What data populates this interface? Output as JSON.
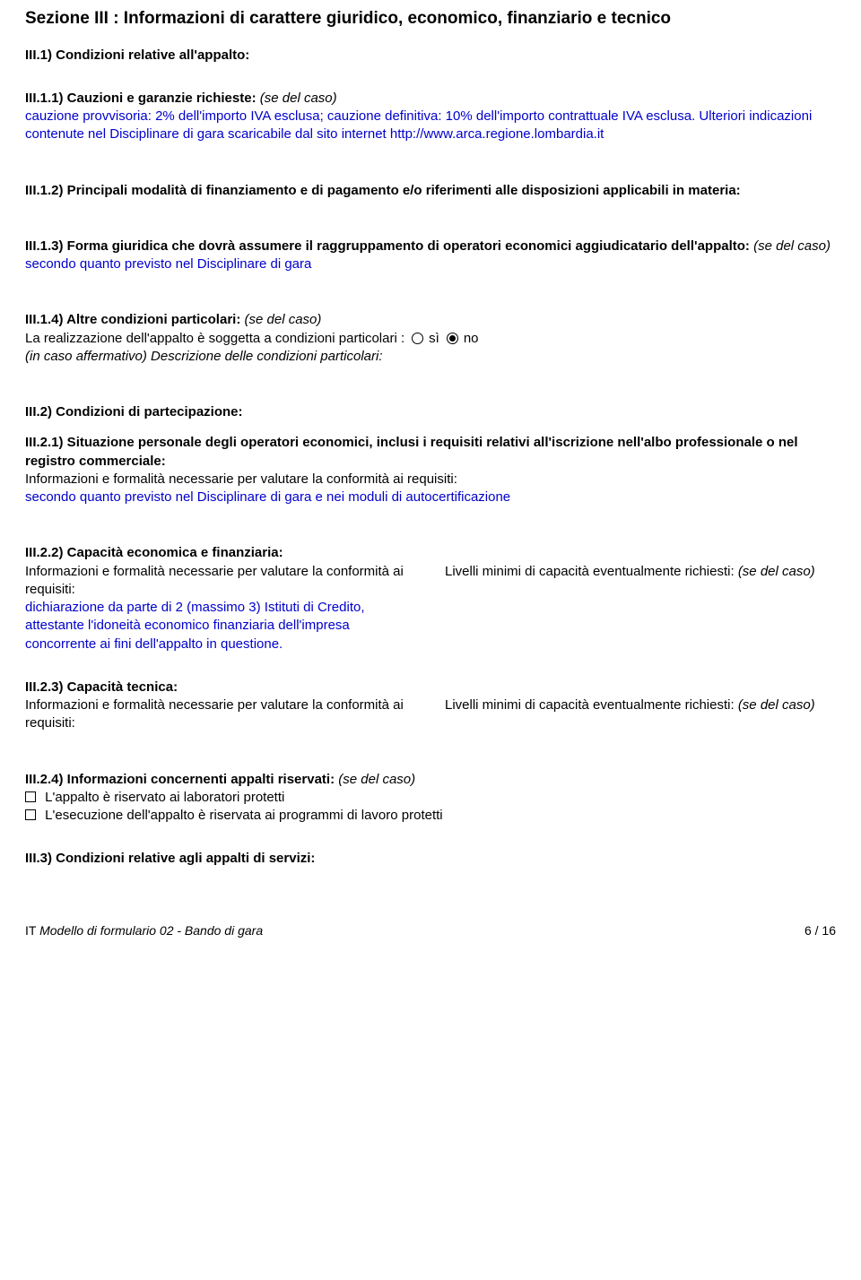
{
  "section_title": "Sezione III : Informazioni di carattere giuridico, economico, finanziario e tecnico",
  "iii_1_heading": "III.1) Condizioni relative all'appalto:",
  "iii_1_1": {
    "label": "III.1.1) Cauzioni e garanzie richieste:",
    "note": "(se del caso)",
    "body": "cauzione provvisoria: 2% dell'importo IVA esclusa; cauzione definitiva: 10% dell'importo contrattuale IVA esclusa. Ulteriori indicazioni contenute nel Disciplinare di gara scaricabile dal sito internet http://www.arca.regione.lombardia.it"
  },
  "iii_1_2": {
    "label": "III.1.2) Principali modalità di finanziamento e di pagamento e/o riferimenti alle disposizioni applicabili in materia:"
  },
  "iii_1_3": {
    "label": "III.1.3) Forma giuridica che dovrà assumere il raggruppamento di operatori economici aggiudicatario dell'appalto:",
    "note": "(se del caso)",
    "body": "secondo quanto previsto nel Disciplinare di gara"
  },
  "iii_1_4": {
    "label": "III.1.4) Altre condizioni particolari:",
    "note": "(se del caso)",
    "line": "La realizzazione dell'appalto è soggetta a condizioni particolari :",
    "si": "sì",
    "no": "no",
    "affirm": "(in caso affermativo) Descrizione delle condizioni particolari:"
  },
  "iii_2_heading": "III.2) Condizioni di partecipazione:",
  "iii_2_1": {
    "label": "III.2.1) Situazione personale degli operatori economici, inclusi i requisiti relativi all'iscrizione nell'albo professionale o nel registro commerciale:",
    "sub": "Informazioni e formalità necessarie per valutare la conformità ai requisiti:",
    "body": "secondo quanto previsto nel Disciplinare di gara e nei moduli di autocertificazione"
  },
  "iii_2_2": {
    "label": "III.2.2) Capacità economica e finanziaria:",
    "left_sub": "Informazioni e formalità necessarie per valutare la conformità ai requisiti:",
    "left_body": "dichiarazione da parte di 2 (massimo 3) Istituti di Credito, attestante l'idoneità economico finanziaria dell'impresa concorrente ai fini dell'appalto in questione.",
    "right_sub": "Livelli minimi di capacità eventualmente richiesti:",
    "right_note": "(se del caso)"
  },
  "iii_2_3": {
    "label": "III.2.3) Capacità tecnica:",
    "left_sub": "Informazioni e formalità necessarie per valutare la conformità ai requisiti:",
    "right_sub": "Livelli minimi di capacità eventualmente richiesti:",
    "right_note": "(se del caso)"
  },
  "iii_2_4": {
    "label": "III.2.4) Informazioni concernenti appalti riservati:",
    "note": "(se del caso)",
    "opt1": "L'appalto è riservato ai laboratori protetti",
    "opt2": "L'esecuzione dell'appalto è riservata ai programmi di lavoro protetti"
  },
  "iii_3_heading": "III.3) Condizioni relative agli appalti di servizi:",
  "footer": {
    "left_prefix": "IT  ",
    "left": "Modello di formulario 02 - Bando di gara",
    "right": "6 / 16"
  }
}
